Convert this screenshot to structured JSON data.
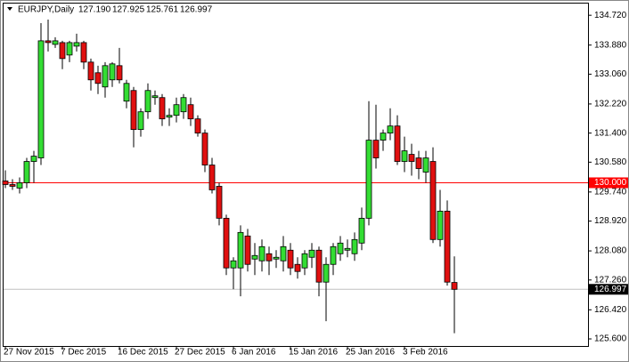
{
  "chart_data": {
    "type": "candlestick",
    "symbol": "EURJPY,Daily",
    "ohlc_labels": [
      "127.190",
      "127.925",
      "125.761",
      "126.997"
    ],
    "categories": [
      "27 Nov 2015",
      null,
      null,
      null,
      null,
      null,
      null,
      null,
      "7 Dec 2015",
      null,
      null,
      null,
      null,
      null,
      null,
      null,
      "16 Dec 2015",
      null,
      null,
      null,
      null,
      null,
      null,
      null,
      "27 Dec 2015",
      null,
      null,
      null,
      null,
      null,
      null,
      null,
      "6 Jan 2016",
      null,
      null,
      null,
      null,
      null,
      null,
      null,
      "15 Jan 2016",
      null,
      null,
      null,
      null,
      null,
      null,
      null,
      "25 Jan 2016",
      null,
      null,
      null,
      null,
      null,
      null,
      null,
      "3 Feb 2016",
      null,
      null,
      null,
      null,
      null,
      null,
      null
    ],
    "open": [
      130.05,
      129.95,
      129.85,
      130.0,
      130.6,
      130.7,
      134.0,
      133.9,
      133.95,
      133.6,
      133.85,
      133.95,
      133.4,
      133.1,
      132.7,
      132.9,
      133.3,
      132.3,
      132.6,
      131.5,
      132.0,
      132.4,
      132.4,
      131.85,
      131.9,
      132.0,
      132.2,
      131.8,
      131.4,
      130.5,
      129.9,
      129.0,
      127.6,
      127.6,
      128.5,
      127.85,
      127.8,
      128.0,
      127.85,
      127.8,
      128.1,
      127.7,
      127.6,
      127.9,
      128.1,
      127.2,
      127.7,
      128.0,
      128.1,
      128.0,
      128.3,
      129.0,
      131.2,
      131.2,
      131.4,
      131.6,
      130.6,
      130.8,
      130.7,
      130.3,
      130.6,
      128.4,
      129.2,
      127.19
    ],
    "high": [
      130.35,
      130.1,
      130.15,
      130.7,
      130.9,
      134.5,
      134.6,
      134.1,
      134.0,
      134.0,
      134.2,
      134.0,
      133.5,
      133.3,
      133.4,
      133.4,
      133.8,
      132.9,
      132.7,
      132.1,
      132.8,
      132.6,
      132.5,
      132.1,
      132.4,
      132.5,
      132.4,
      131.9,
      131.5,
      130.7,
      130.0,
      129.1,
      127.9,
      128.8,
      128.7,
      128.3,
      128.4,
      128.2,
      128.1,
      128.5,
      128.3,
      127.9,
      128.1,
      128.3,
      128.2,
      127.9,
      128.3,
      128.5,
      128.4,
      128.6,
      129.3,
      132.3,
      132.2,
      131.5,
      132.1,
      131.9,
      131.3,
      131.1,
      130.9,
      130.9,
      131.0,
      129.8,
      129.5,
      127.925
    ],
    "low": [
      129.85,
      129.8,
      129.7,
      129.85,
      130.0,
      130.5,
      133.7,
      133.8,
      133.2,
      133.4,
      133.7,
      133.2,
      132.6,
      132.5,
      132.4,
      132.7,
      132.8,
      132.1,
      131.0,
      131.3,
      131.8,
      132.2,
      131.6,
      131.6,
      131.7,
      131.8,
      131.6,
      131.3,
      130.3,
      129.7,
      128.8,
      127.4,
      127.0,
      126.8,
      127.5,
      127.4,
      127.5,
      127.4,
      127.6,
      127.5,
      127.4,
      127.3,
      127.4,
      127.6,
      126.8,
      126.1,
      127.4,
      127.8,
      127.9,
      127.8,
      128.1,
      128.8,
      130.4,
      130.9,
      131.2,
      130.5,
      130.3,
      130.2,
      130.1,
      130.0,
      128.3,
      128.2,
      127.1,
      125.761
    ],
    "close": [
      129.95,
      129.9,
      130.0,
      130.6,
      130.75,
      134.0,
      133.95,
      134.0,
      133.5,
      133.95,
      133.95,
      133.4,
      132.9,
      132.8,
      133.3,
      133.35,
      132.9,
      132.8,
      131.5,
      132.0,
      132.6,
      132.45,
      131.8,
      131.9,
      132.2,
      132.4,
      131.8,
      131.4,
      130.5,
      129.8,
      129.0,
      127.6,
      127.8,
      128.6,
      127.7,
      127.95,
      128.2,
      127.8,
      127.9,
      128.2,
      127.6,
      127.5,
      128.0,
      128.1,
      127.2,
      127.7,
      128.2,
      128.3,
      128.15,
      128.4,
      129.0,
      131.2,
      130.7,
      131.4,
      131.6,
      130.6,
      130.9,
      130.6,
      130.4,
      130.7,
      128.4,
      129.2,
      127.2,
      126.997
    ],
    "up_color": "#33dd33",
    "down_color": "#e01010",
    "ylim": [
      125.4,
      135.05
    ],
    "yticks": [
      {
        "value": 134.72,
        "label": "134.720"
      },
      {
        "value": 133.88,
        "label": "133.880"
      },
      {
        "value": 133.06,
        "label": "133.060"
      },
      {
        "value": 132.22,
        "label": "132.220"
      },
      {
        "value": 131.4,
        "label": "131.400"
      },
      {
        "value": 130.58,
        "label": "130.580"
      },
      {
        "value": 129.74,
        "label": "129.740"
      },
      {
        "value": 128.92,
        "label": "128.920"
      },
      {
        "value": 128.08,
        "label": "128.080"
      },
      {
        "value": 127.26,
        "label": "127.260"
      },
      {
        "value": 126.42,
        "label": "126.420"
      },
      {
        "value": 125.6,
        "label": "125.600"
      }
    ],
    "price_lines": [
      {
        "value": 130.0,
        "label": "130.000",
        "color": "#ff0000"
      },
      {
        "value": 126.997,
        "label": "126.997",
        "color": "#c0c0c0"
      }
    ]
  }
}
